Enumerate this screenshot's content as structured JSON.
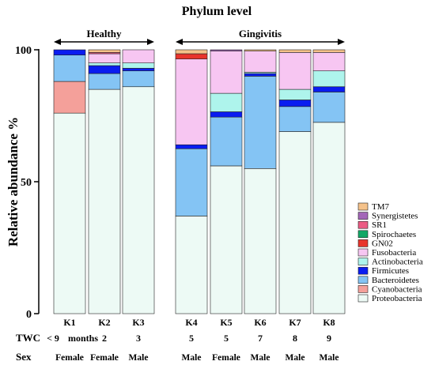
{
  "chart_data": {
    "type": "bar",
    "stacked": true,
    "title": "Phylum level",
    "ylabel": "Relative abundance %",
    "ylim": [
      0,
      100
    ],
    "yticks": [
      "0",
      "50",
      "100"
    ],
    "ytick_values": [
      0,
      50,
      100
    ],
    "categories": [
      "K1",
      "K2",
      "K3",
      "K4",
      "K5",
      "K6",
      "K7",
      "K8"
    ],
    "groups": [
      {
        "label": "Healthy",
        "members": [
          "K1",
          "K2",
          "K3"
        ]
      },
      {
        "label": "Gingivitis",
        "members": [
          "K4",
          "K5",
          "K6",
          "K7",
          "K8"
        ]
      }
    ],
    "rows": [
      {
        "label": "TWC",
        "unit": "months",
        "values": [
          "< 9",
          "2",
          "3",
          "5",
          "5",
          "7",
          "8",
          "9"
        ]
      },
      {
        "label": "Sex",
        "values": [
          "Female",
          "Female",
          "Male",
          "Male",
          "Female",
          "Male",
          "Male",
          "Male"
        ]
      }
    ],
    "legend_position": "right",
    "series": [
      {
        "name": "Proteobacteria",
        "color": "#EDFAF5",
        "values": [
          76,
          85,
          86,
          37,
          56,
          55,
          69,
          72.5
        ]
      },
      {
        "name": "Cyanobacteria",
        "color": "#F4A09A",
        "values": [
          12,
          0,
          0,
          0,
          0,
          0,
          0,
          0
        ]
      },
      {
        "name": "Bacteroidetes",
        "color": "#84C4F4",
        "values": [
          10,
          6,
          6,
          25.5,
          18.5,
          35,
          9.5,
          11.5
        ]
      },
      {
        "name": "Firmicutes",
        "color": "#0A1CF0",
        "values": [
          2,
          3,
          1,
          1.5,
          2,
          1,
          2.5,
          2
        ]
      },
      {
        "name": "Actinobacteria",
        "color": "#AEF4EC",
        "values": [
          0,
          1,
          2,
          0,
          7,
          0.5,
          4,
          6
        ]
      },
      {
        "name": "Fusobacteria",
        "color": "#F7C6F2",
        "values": [
          0,
          3.5,
          5,
          32.5,
          16,
          8,
          14,
          7
        ]
      },
      {
        "name": "GN02",
        "color": "#E8342C",
        "values": [
          0,
          0,
          0,
          2,
          0,
          0,
          0,
          0
        ]
      },
      {
        "name": "Spirochaetes",
        "color": "#11A866",
        "values": [
          0,
          0,
          0,
          0,
          0,
          0,
          0,
          0
        ]
      },
      {
        "name": "SR1",
        "color": "#EC5C84",
        "values": [
          0,
          0.5,
          0,
          0,
          0,
          0,
          0,
          0
        ]
      },
      {
        "name": "Synergistetes",
        "color": "#A366B8",
        "values": [
          0,
          0,
          0,
          0,
          0.5,
          0,
          0,
          0
        ]
      },
      {
        "name": "TM7",
        "color": "#F5C28A",
        "values": [
          0,
          1,
          0,
          1.5,
          0,
          0.5,
          1,
          1
        ]
      }
    ]
  }
}
